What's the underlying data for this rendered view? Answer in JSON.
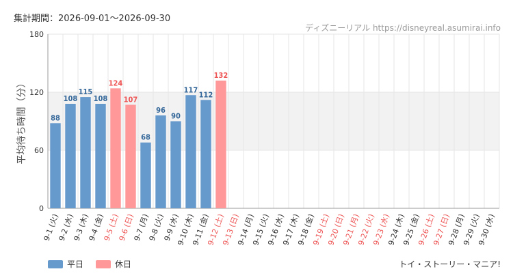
{
  "header": {
    "period_label": "集計期間：2026-09-01〜2026-09-30",
    "source": "ディズニーリアル https://disneyreal.asumirai.info"
  },
  "footer": {
    "attraction": "トイ・ストーリー・マニア!"
  },
  "colors": {
    "weekday": "#6699cc",
    "holiday": "#ff9999",
    "weekday_label": "#336699",
    "holiday_label": "#ee5555",
    "band": "#f2f2f2"
  },
  "legend": [
    {
      "label": "平日",
      "color": "#6699cc"
    },
    {
      "label": "休日",
      "color": "#ff9999"
    }
  ],
  "chart_data": {
    "type": "bar",
    "ylabel": "平均待ち時間（分）",
    "ylim": [
      0,
      180
    ],
    "yticks": [
      0,
      60,
      120,
      180
    ],
    "grid": true,
    "categories": [
      "9-1 (火)",
      "9-2 (水)",
      "9-3 (木)",
      "9-4 (金)",
      "9-5 (土)",
      "9-6 (日)",
      "9-7 (月)",
      "9-8 (火)",
      "9-9 (水)",
      "9-10 (木)",
      "9-11 (金)",
      "9-12 (土)",
      "9-13 (日)",
      "9-14 (月)",
      "9-15 (火)",
      "9-16 (水)",
      "9-17 (木)",
      "9-18 (金)",
      "9-19 (土)",
      "9-20 (日)",
      "9-21 (月)",
      "9-22 (火)",
      "9-23 (水)",
      "9-24 (木)",
      "9-25 (金)",
      "9-26 (土)",
      "9-27 (日)",
      "9-28 (月)",
      "9-29 (火)",
      "9-30 (水)"
    ],
    "holiday": [
      false,
      false,
      false,
      false,
      true,
      true,
      false,
      false,
      false,
      false,
      false,
      true,
      true,
      false,
      false,
      false,
      false,
      false,
      true,
      true,
      true,
      true,
      true,
      false,
      false,
      true,
      true,
      false,
      false,
      false
    ],
    "values": [
      88,
      108,
      115,
      108,
      124,
      107,
      68,
      96,
      90,
      117,
      112,
      132,
      null,
      null,
      null,
      null,
      null,
      null,
      null,
      null,
      null,
      null,
      null,
      null,
      null,
      null,
      null,
      null,
      null,
      null
    ]
  }
}
